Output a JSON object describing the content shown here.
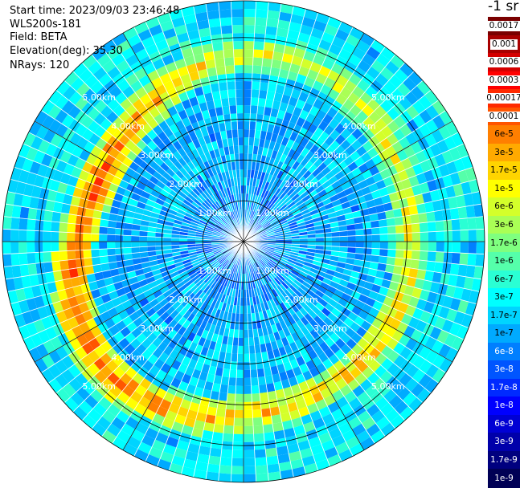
{
  "info": {
    "start_time": "Start time: 2023/09/03 23:46:48",
    "instrument": "WLS200s-181",
    "field": "Field: BETA",
    "elevation": "Elevation(deg): 35.30",
    "nrays": "NRays: 120"
  },
  "colorbar": {
    "title": "-1 sr",
    "levels": [
      {
        "label": "0.0017",
        "color": "#7a0000",
        "text_color": "#000000",
        "label_bg": "#ffffff"
      },
      {
        "label": "0.001",
        "color": "#a80000",
        "text_color": "#000000",
        "label_bg": "#ffffff"
      },
      {
        "label": "0.0006",
        "color": "#d40000",
        "text_color": "#000000",
        "label_bg": "#ffffff"
      },
      {
        "label": "0.0003",
        "color": "#ff0000",
        "text_color": "#000000",
        "label_bg": "#ffffff"
      },
      {
        "label": "0.00017",
        "color": "#ff2a00",
        "text_color": "#000000",
        "label_bg": "#ffffff"
      },
      {
        "label": "0.0001",
        "color": "#ff5500",
        "text_color": "#000000",
        "label_bg": "#ffffff"
      },
      {
        "label": "6e-5",
        "color": "#ff7f00",
        "text_color": "#000000",
        "label_bg": "none"
      },
      {
        "label": "3e-5",
        "color": "#ffaa00",
        "text_color": "#000000",
        "label_bg": "none"
      },
      {
        "label": "1.7e-5",
        "color": "#ffd400",
        "text_color": "#000000",
        "label_bg": "none"
      },
      {
        "label": "1e-5",
        "color": "#ffff00",
        "text_color": "#000000",
        "label_bg": "none"
      },
      {
        "label": "6e-6",
        "color": "#d4ff2a",
        "text_color": "#000000",
        "label_bg": "none"
      },
      {
        "label": "3e-6",
        "color": "#aaff55",
        "text_color": "#000000",
        "label_bg": "none"
      },
      {
        "label": "1.7e-6",
        "color": "#7fff7f",
        "text_color": "#000000",
        "label_bg": "none"
      },
      {
        "label": "1e-6",
        "color": "#55ffaa",
        "text_color": "#000000",
        "label_bg": "none"
      },
      {
        "label": "6e-7",
        "color": "#2affd4",
        "text_color": "#000000",
        "label_bg": "none"
      },
      {
        "label": "3e-7",
        "color": "#00ffff",
        "text_color": "#000000",
        "label_bg": "none"
      },
      {
        "label": "1.7e-7",
        "color": "#00d4ff",
        "text_color": "#000000",
        "label_bg": "none"
      },
      {
        "label": "1e-7",
        "color": "#00aaff",
        "text_color": "#000000",
        "label_bg": "none"
      },
      {
        "label": "6e-8",
        "color": "#007fff",
        "text_color": "#ffffff",
        "label_bg": "none"
      },
      {
        "label": "3e-8",
        "color": "#0055ff",
        "text_color": "#ffffff",
        "label_bg": "none"
      },
      {
        "label": "1.7e-8",
        "color": "#002aff",
        "text_color": "#ffffff",
        "label_bg": "none"
      },
      {
        "label": "1e-8",
        "color": "#0000ff",
        "text_color": "#ffffff",
        "label_bg": "none"
      },
      {
        "label": "6e-9",
        "color": "#0000d4",
        "text_color": "#ffffff",
        "label_bg": "none"
      },
      {
        "label": "3e-9",
        "color": "#0000aa",
        "text_color": "#ffffff",
        "label_bg": "none"
      },
      {
        "label": "1.7e-9",
        "color": "#00007f",
        "text_color": "#ffffff",
        "label_bg": "none"
      },
      {
        "label": "1e-9",
        "color": "#000055",
        "text_color": "#ffffff",
        "label_bg": "none"
      }
    ]
  },
  "ppi": {
    "n_rays": 120,
    "max_range_km": 5.9,
    "range_rings_km": [
      1.0,
      2.0,
      3.0,
      4.0,
      5.0
    ],
    "ring_labels": [
      "1.00km",
      "2.00km",
      "3.00km",
      "4.00km",
      "5.00km"
    ],
    "azimuth_spokes_deg": [
      0,
      30,
      60,
      90,
      120,
      150,
      180,
      210,
      240,
      270,
      300,
      330
    ],
    "label_bearings_deg": [
      45,
      135,
      225,
      315
    ],
    "aerosol_layer_range_km": 4.25,
    "colors": {
      "ring_line": "#000000",
      "ray_separator": "#ffffff",
      "label_text": "#ffffff"
    }
  }
}
